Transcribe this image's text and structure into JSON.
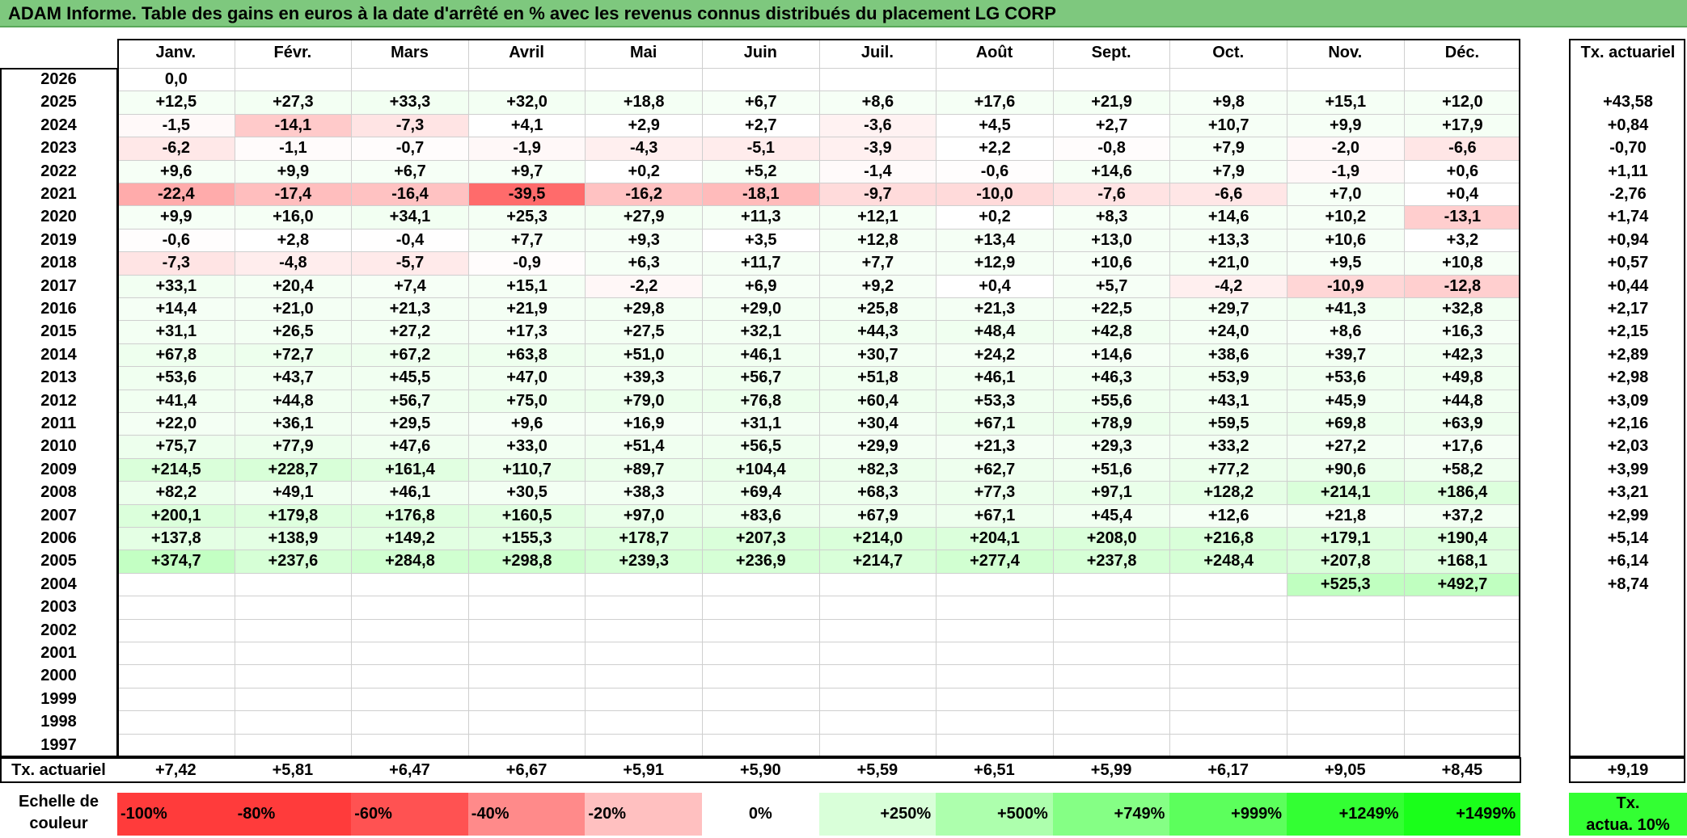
{
  "title": "ADAM Informe. Table des gains en euros à la date d'arrêté en % avec les revenus connus distribués du placement LG CORP",
  "chart_data": {
    "type": "heatmap",
    "title": "ADAM Informe. Table des gains en euros à la date d'arrêté en % avec les revenus connus distribués du placement LG CORP",
    "columns": [
      "Janv.",
      "Févr.",
      "Mars",
      "Avril",
      "Mai",
      "Juin",
      "Juil.",
      "Août",
      "Sept.",
      "Oct.",
      "Nov.",
      "Déc."
    ],
    "annual_header": "Tx. actuariel",
    "rows": [
      {
        "year": "2026",
        "values": [
          "0,0",
          "",
          "",
          "",
          "",
          "",
          "",
          "",
          "",
          "",
          "",
          ""
        ],
        "annual": ""
      },
      {
        "year": "2025",
        "values": [
          "+12,5",
          "+27,3",
          "+33,3",
          "+32,0",
          "+18,8",
          "+6,7",
          "+8,6",
          "+17,6",
          "+21,9",
          "+9,8",
          "+15,1",
          "+12,0"
        ],
        "annual": "+43,58"
      },
      {
        "year": "2024",
        "values": [
          "-1,5",
          "-14,1",
          "-7,3",
          "+4,1",
          "+2,9",
          "+2,7",
          "-3,6",
          "+4,5",
          "+2,7",
          "+10,7",
          "+9,9",
          "+17,9"
        ],
        "annual": "+0,84"
      },
      {
        "year": "2023",
        "values": [
          "-6,2",
          "-1,1",
          "-0,7",
          "-1,9",
          "-4,3",
          "-5,1",
          "-3,9",
          "+2,2",
          "-0,8",
          "+7,9",
          "-2,0",
          "-6,6"
        ],
        "annual": "-0,70"
      },
      {
        "year": "2022",
        "values": [
          "+9,6",
          "+9,9",
          "+6,7",
          "+9,7",
          "+0,2",
          "+5,2",
          "-1,4",
          "-0,6",
          "+14,6",
          "+7,9",
          "-1,9",
          "+0,6"
        ],
        "annual": "+1,11"
      },
      {
        "year": "2021",
        "values": [
          "-22,4",
          "-17,4",
          "-16,4",
          "-39,5",
          "-16,2",
          "-18,1",
          "-9,7",
          "-10,0",
          "-7,6",
          "-6,6",
          "+7,0",
          "+0,4"
        ],
        "annual": "-2,76"
      },
      {
        "year": "2020",
        "values": [
          "+9,9",
          "+16,0",
          "+34,1",
          "+25,3",
          "+27,9",
          "+11,3",
          "+12,1",
          "+0,2",
          "+8,3",
          "+14,6",
          "+10,2",
          "-13,1"
        ],
        "annual": "+1,74"
      },
      {
        "year": "2019",
        "values": [
          "-0,6",
          "+2,8",
          "-0,4",
          "+7,7",
          "+9,3",
          "+3,5",
          "+12,8",
          "+13,4",
          "+13,0",
          "+13,3",
          "+10,6",
          "+3,2"
        ],
        "annual": "+0,94"
      },
      {
        "year": "2018",
        "values": [
          "-7,3",
          "-4,8",
          "-5,7",
          "-0,9",
          "+6,3",
          "+11,7",
          "+7,7",
          "+12,9",
          "+10,6",
          "+21,0",
          "+9,5",
          "+10,8"
        ],
        "annual": "+0,57"
      },
      {
        "year": "2017",
        "values": [
          "+33,1",
          "+20,4",
          "+7,4",
          "+15,1",
          "-2,2",
          "+6,9",
          "+9,2",
          "+0,4",
          "+5,7",
          "-4,2",
          "-10,9",
          "-12,8"
        ],
        "annual": "+0,44"
      },
      {
        "year": "2016",
        "values": [
          "+14,4",
          "+21,0",
          "+21,3",
          "+21,9",
          "+29,8",
          "+29,0",
          "+25,8",
          "+21,3",
          "+22,5",
          "+29,7",
          "+41,3",
          "+32,8"
        ],
        "annual": "+2,17"
      },
      {
        "year": "2015",
        "values": [
          "+31,1",
          "+26,5",
          "+27,2",
          "+17,3",
          "+27,5",
          "+32,1",
          "+44,3",
          "+48,4",
          "+42,8",
          "+24,0",
          "+8,6",
          "+16,3"
        ],
        "annual": "+2,15"
      },
      {
        "year": "2014",
        "values": [
          "+67,8",
          "+72,7",
          "+67,2",
          "+63,8",
          "+51,0",
          "+46,1",
          "+30,7",
          "+24,2",
          "+14,6",
          "+38,6",
          "+39,7",
          "+42,3"
        ],
        "annual": "+2,89"
      },
      {
        "year": "2013",
        "values": [
          "+53,6",
          "+43,7",
          "+45,5",
          "+47,0",
          "+39,3",
          "+56,7",
          "+51,8",
          "+46,1",
          "+46,3",
          "+53,9",
          "+53,6",
          "+49,8"
        ],
        "annual": "+2,98"
      },
      {
        "year": "2012",
        "values": [
          "+41,4",
          "+44,8",
          "+56,7",
          "+75,0",
          "+79,0",
          "+76,8",
          "+60,4",
          "+53,3",
          "+55,6",
          "+43,1",
          "+45,9",
          "+44,8"
        ],
        "annual": "+3,09"
      },
      {
        "year": "2011",
        "values": [
          "+22,0",
          "+36,1",
          "+29,5",
          "+9,6",
          "+16,9",
          "+31,1",
          "+30,4",
          "+67,1",
          "+78,9",
          "+59,5",
          "+69,8",
          "+63,9"
        ],
        "annual": "+2,16"
      },
      {
        "year": "2010",
        "values": [
          "+75,7",
          "+77,9",
          "+47,6",
          "+33,0",
          "+51,4",
          "+56,5",
          "+29,9",
          "+21,3",
          "+29,3",
          "+33,2",
          "+27,2",
          "+17,6"
        ],
        "annual": "+2,03"
      },
      {
        "year": "2009",
        "values": [
          "+214,5",
          "+228,7",
          "+161,4",
          "+110,7",
          "+89,7",
          "+104,4",
          "+82,3",
          "+62,7",
          "+51,6",
          "+77,2",
          "+90,6",
          "+58,2"
        ],
        "annual": "+3,99"
      },
      {
        "year": "2008",
        "values": [
          "+82,2",
          "+49,1",
          "+46,1",
          "+30,5",
          "+38,3",
          "+69,4",
          "+68,3",
          "+77,3",
          "+97,1",
          "+128,2",
          "+214,1",
          "+186,4"
        ],
        "annual": "+3,21"
      },
      {
        "year": "2007",
        "values": [
          "+200,1",
          "+179,8",
          "+176,8",
          "+160,5",
          "+97,0",
          "+83,6",
          "+67,9",
          "+67,1",
          "+45,4",
          "+12,6",
          "+21,8",
          "+37,2"
        ],
        "annual": "+2,99"
      },
      {
        "year": "2006",
        "values": [
          "+137,8",
          "+138,9",
          "+149,2",
          "+155,3",
          "+178,7",
          "+207,3",
          "+214,0",
          "+204,1",
          "+208,0",
          "+216,8",
          "+179,1",
          "+190,4"
        ],
        "annual": "+5,14"
      },
      {
        "year": "2005",
        "values": [
          "+374,7",
          "+237,6",
          "+284,8",
          "+298,8",
          "+239,3",
          "+236,9",
          "+214,7",
          "+277,4",
          "+237,8",
          "+248,4",
          "+207,8",
          "+168,1"
        ],
        "annual": "+6,14"
      },
      {
        "year": "2004",
        "values": [
          "",
          "",
          "",
          "",
          "",
          "",
          "",
          "",
          "",
          "",
          "+525,3",
          "+492,7"
        ],
        "annual": "+8,74"
      },
      {
        "year": "2003",
        "values": [
          "",
          "",
          "",
          "",
          "",
          "",
          "",
          "",
          "",
          "",
          "",
          ""
        ],
        "annual": ""
      },
      {
        "year": "2002",
        "values": [
          "",
          "",
          "",
          "",
          "",
          "",
          "",
          "",
          "",
          "",
          "",
          ""
        ],
        "annual": ""
      },
      {
        "year": "2001",
        "values": [
          "",
          "",
          "",
          "",
          "",
          "",
          "",
          "",
          "",
          "",
          "",
          ""
        ],
        "annual": ""
      },
      {
        "year": "2000",
        "values": [
          "",
          "",
          "",
          "",
          "",
          "",
          "",
          "",
          "",
          "",
          "",
          ""
        ],
        "annual": ""
      },
      {
        "year": "1999",
        "values": [
          "",
          "",
          "",
          "",
          "",
          "",
          "",
          "",
          "",
          "",
          "",
          ""
        ],
        "annual": ""
      },
      {
        "year": "1998",
        "values": [
          "",
          "",
          "",
          "",
          "",
          "",
          "",
          "",
          "",
          "",
          "",
          ""
        ],
        "annual": ""
      },
      {
        "year": "1997",
        "values": [
          "",
          "",
          "",
          "",
          "",
          "",
          "",
          "",
          "",
          "",
          "",
          ""
        ],
        "annual": ""
      }
    ],
    "footer": {
      "label": "Tx. actuariel",
      "values": [
        "+7,42",
        "+5,81",
        "+6,47",
        "+6,67",
        "+5,91",
        "+5,90",
        "+5,59",
        "+6,51",
        "+5,99",
        "+6,17",
        "+9,05",
        "+8,45"
      ],
      "annual": "+9,19"
    },
    "scale": {
      "label_line1": "Echelle de",
      "label_line2": "couleur",
      "stops": [
        {
          "label": "-100%",
          "color": "#ff3b3b"
        },
        {
          "label": "-80%",
          "color": "#ff3b3b"
        },
        {
          "label": "-60%",
          "color": "#ff5252"
        },
        {
          "label": "-40%",
          "color": "#ff8a8a"
        },
        {
          "label": "-20%",
          "color": "#ffc0c0"
        },
        {
          "label": "0%",
          "color": "#ffffff"
        },
        {
          "label": "+250%",
          "color": "#d9ffd9"
        },
        {
          "label": "+500%",
          "color": "#adffad"
        },
        {
          "label": "+749%",
          "color": "#85ff85"
        },
        {
          "label": "+999%",
          "color": "#5cff5c"
        },
        {
          "label": "+1249%",
          "color": "#33ff33"
        },
        {
          "label": "+1499%",
          "color": "#1aff1a"
        }
      ],
      "annual_label_line1": "Tx.",
      "annual_label_line2": "actua. 10%",
      "annual_color": "#33ff33"
    }
  }
}
